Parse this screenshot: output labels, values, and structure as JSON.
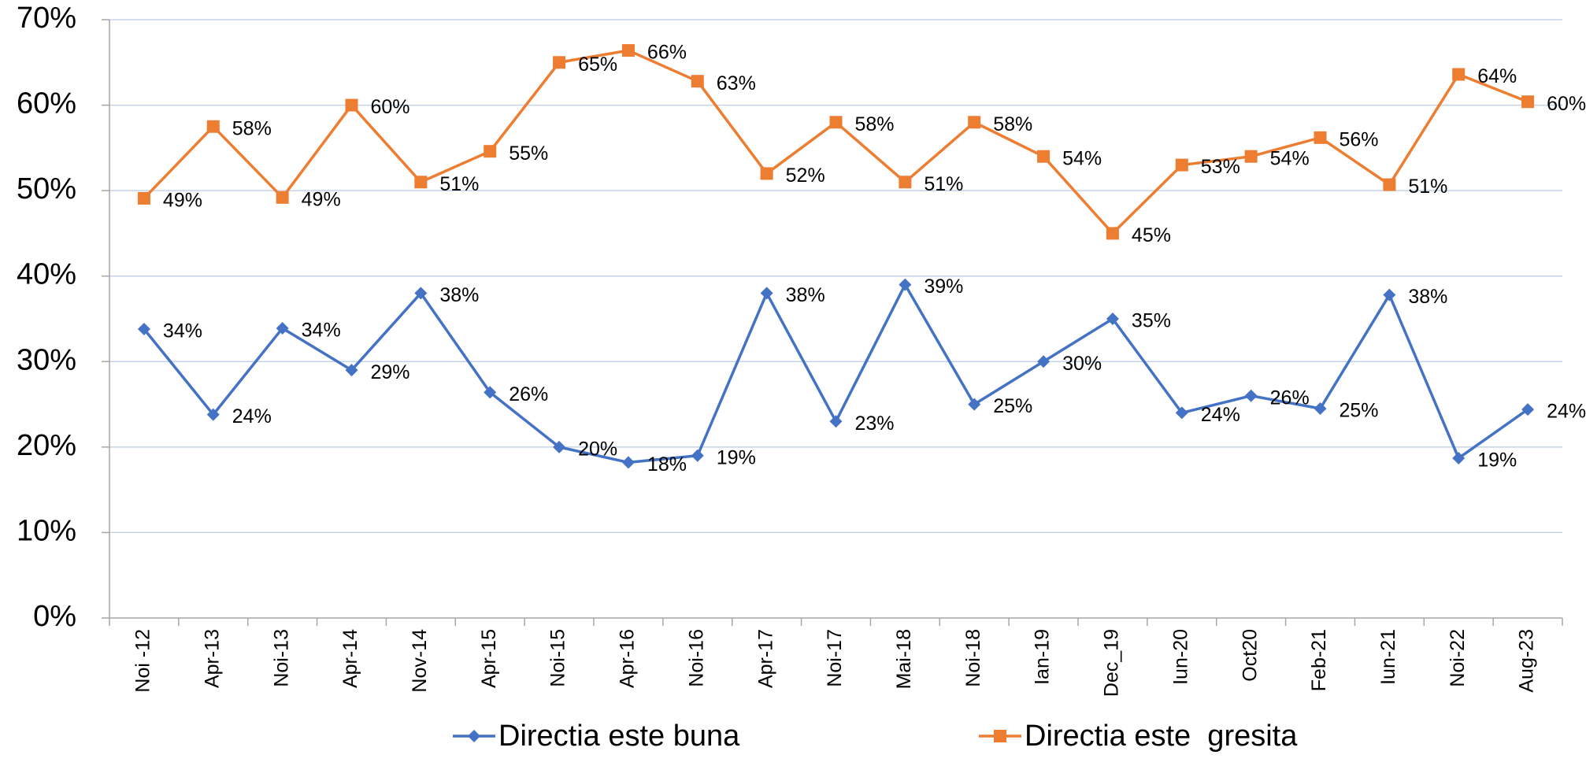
{
  "chart_data": {
    "type": "line",
    "categories": [
      "Noi -12",
      "Apr-13",
      "Noi-13",
      "Apr-14",
      "Nov-14",
      "Apr-15",
      "Noi-15",
      "Apr-16",
      "Noi-16",
      "Apr-17",
      "Noi-17",
      "Mai-18",
      "Noi-18",
      "Ian-19",
      "Dec_19",
      "Iun-20",
      "Oct20",
      "Feb-21",
      "Iun-21",
      "Noi-22",
      "Aug-23"
    ],
    "series": [
      {
        "name": "Directia este buna",
        "color": "#4472c4",
        "marker": "diamond",
        "values": [
          33.8,
          23.8,
          33.9,
          29,
          38,
          26.4,
          20,
          18.2,
          19,
          38,
          23,
          39,
          25,
          30,
          35,
          24,
          26,
          24.5,
          37.8,
          18.7,
          24.4
        ],
        "value_labels": [
          "34%",
          "24%",
          "34%",
          "29%",
          "38%",
          "26%",
          "20%",
          "18%",
          "19%",
          "38%",
          "23%",
          "39%",
          "25%",
          "30%",
          "35%",
          "24%",
          "26%",
          "25%",
          "38%",
          "19%",
          "24%"
        ]
      },
      {
        "name": "Directia este  gresita",
        "color": "#ed7d31",
        "marker": "square",
        "values": [
          49.1,
          57.5,
          49.2,
          60,
          51,
          54.6,
          65,
          66.4,
          62.8,
          52,
          58,
          51,
          58,
          54,
          45,
          53,
          54,
          56.2,
          50.7,
          63.6,
          60.4
        ],
        "value_labels": [
          "49%",
          "58%",
          "49%",
          "60%",
          "51%",
          "55%",
          "65%",
          "66%",
          "63%",
          "52%",
          "58%",
          "51%",
          "58%",
          "54%",
          "45%",
          "53%",
          "54%",
          "56%",
          "51%",
          "64%",
          "60%"
        ]
      }
    ],
    "ylim": [
      0,
      70
    ],
    "yticks": [
      {
        "value": 0,
        "label": "0%"
      },
      {
        "value": 10,
        "label": "10%"
      },
      {
        "value": 20,
        "label": "20%"
      },
      {
        "value": 30,
        "label": "30%"
      },
      {
        "value": 40,
        "label": "40%"
      },
      {
        "value": 50,
        "label": "50%"
      },
      {
        "value": 60,
        "label": "60%"
      },
      {
        "value": 70,
        "label": "70%"
      }
    ],
    "grid": true,
    "legend": "bottom"
  }
}
